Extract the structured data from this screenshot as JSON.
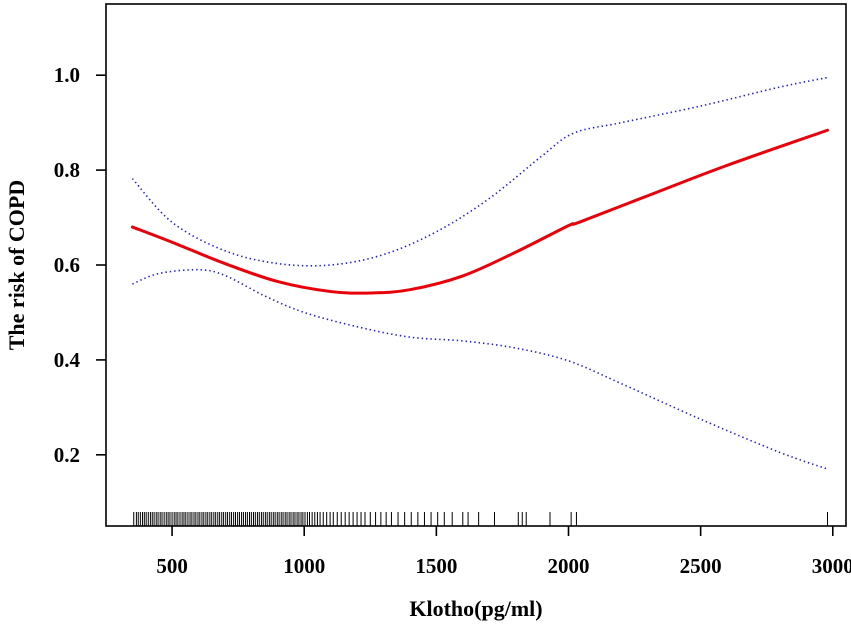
{
  "chart_data": {
    "type": "line",
    "title": "",
    "xlabel": "Klotho(pg/ml)",
    "ylabel": "The risk of COPD",
    "xlim": [
      250,
      3050
    ],
    "ylim": [
      0.05,
      1.15
    ],
    "x_ticks": [
      500,
      1000,
      1500,
      2000,
      2500,
      3000
    ],
    "x_tick_labels": [
      "500",
      "1000",
      "1500",
      "2000",
      "2500",
      "3000"
    ],
    "y_ticks": [
      0.2,
      0.4,
      0.6,
      0.8,
      1.0
    ],
    "y_tick_labels": [
      "0.2",
      "0.4",
      "0.6",
      "0.8",
      "1.0"
    ],
    "grid": false,
    "legend": "none",
    "series": [
      {
        "role": "estimate",
        "color": "#e8000b",
        "style": "solid",
        "x": [
          350,
          500,
          700,
          900,
          1100,
          1250,
          1400,
          1600,
          1800,
          2000,
          2040,
          2300,
          2600,
          2980
        ],
        "y": [
          0.68,
          0.648,
          0.603,
          0.565,
          0.544,
          0.541,
          0.548,
          0.577,
          0.627,
          0.683,
          0.69,
          0.746,
          0.81,
          0.884
        ]
      },
      {
        "role": "upper-ci",
        "color": "#1a1ae6",
        "style": "dotted",
        "x": [
          350,
          500,
          700,
          900,
          1100,
          1300,
          1500,
          1700,
          1900,
          2020,
          2200,
          2500,
          2800,
          2980
        ],
        "y": [
          0.782,
          0.69,
          0.63,
          0.603,
          0.6,
          0.622,
          0.67,
          0.74,
          0.83,
          0.878,
          0.9,
          0.935,
          0.975,
          0.995
        ]
      },
      {
        "role": "lower-ci",
        "color": "#1a1ae6",
        "style": "dotted",
        "x": [
          350,
          450,
          600,
          700,
          850,
          1000,
          1200,
          1400,
          1600,
          1800,
          2000,
          2200,
          2500,
          2800,
          2980
        ],
        "y": [
          0.56,
          0.582,
          0.59,
          0.578,
          0.535,
          0.5,
          0.47,
          0.448,
          0.44,
          0.425,
          0.398,
          0.35,
          0.275,
          0.205,
          0.17
        ]
      }
    ],
    "rug": [
      355,
      365,
      372,
      380,
      388,
      395,
      402,
      410,
      418,
      425,
      432,
      440,
      447,
      455,
      462,
      470,
      478,
      485,
      492,
      500,
      508,
      515,
      522,
      530,
      538,
      545,
      552,
      560,
      568,
      575,
      583,
      590,
      598,
      605,
      613,
      620,
      628,
      635,
      643,
      650,
      658,
      665,
      673,
      680,
      688,
      695,
      703,
      710,
      718,
      725,
      733,
      740,
      748,
      755,
      763,
      770,
      778,
      785,
      793,
      800,
      808,
      815,
      823,
      830,
      838,
      845,
      853,
      860,
      868,
      875,
      883,
      890,
      898,
      905,
      913,
      920,
      928,
      935,
      943,
      950,
      958,
      965,
      973,
      980,
      988,
      995,
      1003,
      1012,
      1020,
      1030,
      1040,
      1050,
      1060,
      1072,
      1085,
      1098,
      1110,
      1125,
      1140,
      1155,
      1170,
      1185,
      1200,
      1215,
      1230,
      1250,
      1270,
      1290,
      1310,
      1330,
      1355,
      1380,
      1405,
      1430,
      1455,
      1480,
      1505,
      1530,
      1560,
      1600,
      1620,
      1660,
      1720,
      1810,
      1825,
      1840,
      1930,
      2010,
      2030,
      2980
    ]
  }
}
